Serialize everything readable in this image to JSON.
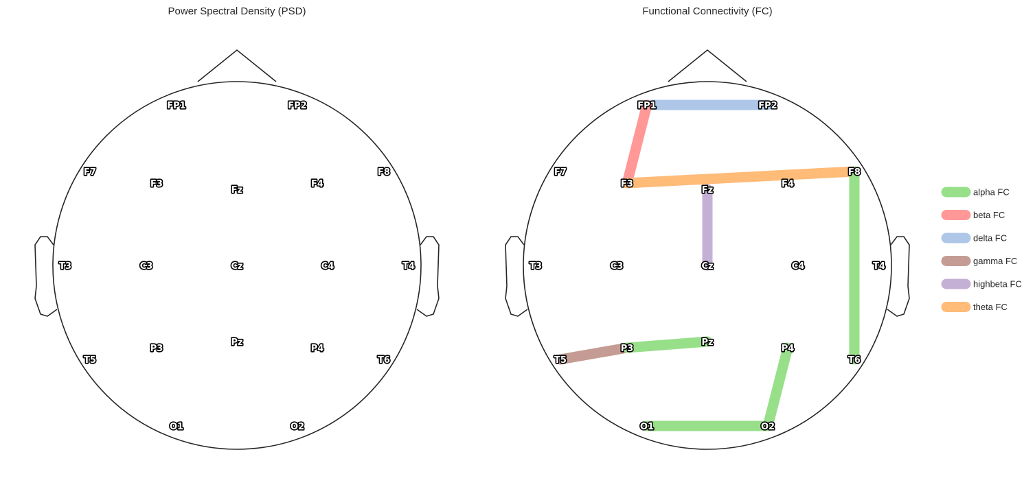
{
  "panels": {
    "psd": {
      "title": "Power Spectral Density (PSD)"
    },
    "fc": {
      "title": "Functional Connectivity (FC)"
    }
  },
  "electrodes": [
    "FP1",
    "FP2",
    "F7",
    "F3",
    "Fz",
    "F4",
    "F8",
    "T3",
    "C3",
    "Cz",
    "C4",
    "T4",
    "T5",
    "P3",
    "Pz",
    "P4",
    "T6",
    "O1",
    "O2"
  ],
  "connections": [
    {
      "from": "FP1",
      "to": "FP2",
      "band": "delta"
    },
    {
      "from": "FP1",
      "to": "F3",
      "band": "beta"
    },
    {
      "from": "F3",
      "to": "F8",
      "band": "theta"
    },
    {
      "from": "Fz",
      "to": "Cz",
      "band": "highbeta"
    },
    {
      "from": "F8",
      "to": "T6",
      "band": "alpha"
    },
    {
      "from": "T5",
      "to": "P3",
      "band": "gamma"
    },
    {
      "from": "P3",
      "to": "Pz",
      "band": "alpha"
    },
    {
      "from": "P4",
      "to": "O2",
      "band": "alpha"
    },
    {
      "from": "O1",
      "to": "O2",
      "band": "alpha"
    }
  ],
  "legend": [
    {
      "band": "alpha",
      "label": "alpha FC",
      "color": "#98df8a"
    },
    {
      "band": "beta",
      "label": "beta FC",
      "color": "#ff9896"
    },
    {
      "band": "delta",
      "label": "delta FC",
      "color": "#aec7e8"
    },
    {
      "band": "gamma",
      "label": "gamma FC",
      "color": "#c49c94"
    },
    {
      "band": "highbeta",
      "label": "highbeta FC",
      "color": "#c5b0d5"
    },
    {
      "band": "theta",
      "label": "theta FC",
      "color": "#ffbb78"
    }
  ]
}
